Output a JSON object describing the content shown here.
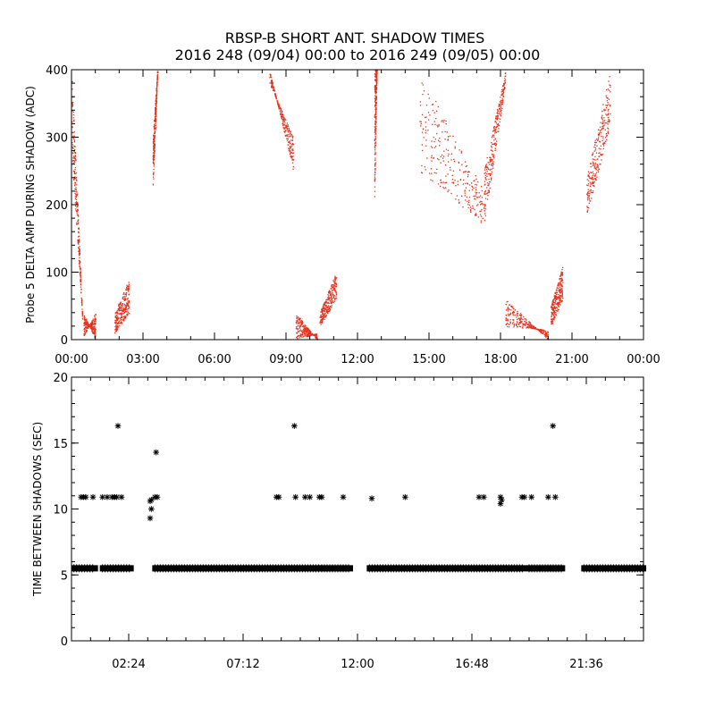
{
  "title_line1": "RBSP-B SHORT ANT. SHADOW TIMES",
  "title_line2": "2016 248 (09/04) 00:00 to 2016 249 (09/05) 00:00",
  "colors": {
    "points": "#e8301a",
    "axes": "#000000"
  },
  "chart_data": [
    {
      "type": "scatter",
      "ylabel": "Probe 5 DELTA AMP DURING SHADOW (ADC)",
      "x_unit": "hours",
      "xlim": [
        0,
        24
      ],
      "ylim": [
        0,
        400
      ],
      "xtick_labels": [
        "00:00",
        "03:00",
        "06:00",
        "09:00",
        "12:00",
        "15:00",
        "18:00",
        "21:00",
        "00:00"
      ],
      "ytick_labels": [
        "0",
        "100",
        "200",
        "300",
        "400"
      ],
      "point_groups": [
        {
          "x": [
            0.0,
            0.45
          ],
          "y_start": [
            400,
            280
          ],
          "y_end": [
            30,
            30
          ]
        },
        {
          "x": [
            0.5,
            1.0
          ],
          "y_start": [
            40,
            5
          ],
          "y_end": [
            0,
            40
          ]
        },
        {
          "x": [
            1.8,
            2.4
          ],
          "y_start": [
            10,
            40
          ],
          "y_end": [
            40,
            90
          ]
        },
        {
          "x": [
            3.4,
            3.6
          ],
          "y_start": [
            220,
            300
          ],
          "y_end": [
            400,
            400
          ]
        },
        {
          "x": [
            8.3,
            9.3
          ],
          "y_start": [
            400,
            380
          ],
          "y_end": [
            250,
            300
          ]
        },
        {
          "x": [
            9.4,
            10.3
          ],
          "y_start": [
            40,
            0
          ],
          "y_end": [
            0,
            10
          ]
        },
        {
          "x": [
            10.4,
            11.1
          ],
          "y_start": [
            20,
            40
          ],
          "y_end": [
            60,
            100
          ]
        },
        {
          "x": [
            12.7,
            12.8
          ],
          "y_start": [
            200,
            400
          ],
          "y_end": [
            400,
            400
          ]
        },
        {
          "x": [
            14.6,
            17.3
          ],
          "y_start": [
            400,
            250
          ],
          "y_end": [
            220,
            170
          ]
        },
        {
          "x": [
            17.3,
            18.2
          ],
          "y_start": [
            170,
            250
          ],
          "y_end": [
            380,
            400
          ]
        },
        {
          "x": [
            18.2,
            20.0
          ],
          "y_start": [
            60,
            20
          ],
          "y_end": [
            0,
            15
          ]
        },
        {
          "x": [
            20.1,
            20.6
          ],
          "y_start": [
            20,
            50
          ],
          "y_end": [
            60,
            110
          ]
        },
        {
          "x": [
            21.6,
            22.6
          ],
          "y_start": [
            180,
            240
          ],
          "y_end": [
            320,
            400
          ]
        }
      ]
    },
    {
      "type": "scatter",
      "ylabel": "TIME BETWEEN SHADOWS (SEC)",
      "x_unit": "hours",
      "xlim": [
        0,
        24
      ],
      "ylim": [
        0,
        20
      ],
      "xtick_labels": [
        "02:24",
        "07:12",
        "12:00",
        "16:48",
        "21:36"
      ],
      "xtick_values": [
        2.4,
        7.2,
        12.0,
        16.8,
        21.6
      ],
      "ytick_labels": [
        "0",
        "5",
        "10",
        "15",
        "20"
      ],
      "baseline_segments": [
        [
          0.1,
          1.0
        ],
        [
          1.3,
          2.5
        ],
        [
          3.5,
          10.4
        ],
        [
          10.5,
          11.7
        ],
        [
          12.5,
          19.0
        ],
        [
          19.2,
          20.6
        ],
        [
          21.5,
          24.0
        ]
      ],
      "baseline_value": 5.5,
      "points": [
        [
          0.4,
          10.9
        ],
        [
          0.5,
          10.9
        ],
        [
          0.6,
          10.9
        ],
        [
          0.9,
          10.9
        ],
        [
          1.3,
          10.9
        ],
        [
          1.5,
          10.9
        ],
        [
          1.7,
          10.9
        ],
        [
          1.8,
          10.9
        ],
        [
          1.9,
          10.9
        ],
        [
          2.1,
          10.9
        ],
        [
          1.95,
          16.3
        ],
        [
          3.3,
          9.3
        ],
        [
          3.35,
          10.0
        ],
        [
          3.3,
          10.6
        ],
        [
          3.35,
          10.7
        ],
        [
          3.5,
          10.9
        ],
        [
          3.6,
          10.9
        ],
        [
          3.55,
          14.3
        ],
        [
          8.6,
          10.9
        ],
        [
          8.7,
          10.9
        ],
        [
          9.4,
          10.9
        ],
        [
          9.35,
          16.3
        ],
        [
          9.8,
          10.9
        ],
        [
          10.0,
          10.9
        ],
        [
          10.4,
          10.9
        ],
        [
          10.5,
          10.9
        ],
        [
          11.4,
          10.9
        ],
        [
          12.6,
          10.8
        ],
        [
          14.0,
          10.9
        ],
        [
          17.1,
          10.9
        ],
        [
          17.3,
          10.9
        ],
        [
          18.0,
          10.9
        ],
        [
          18.05,
          10.7
        ],
        [
          18.0,
          10.4
        ],
        [
          18.9,
          10.9
        ],
        [
          19.0,
          10.9
        ],
        [
          19.3,
          10.9
        ],
        [
          20.0,
          10.9
        ],
        [
          20.3,
          10.9
        ],
        [
          20.2,
          16.3
        ]
      ]
    }
  ]
}
